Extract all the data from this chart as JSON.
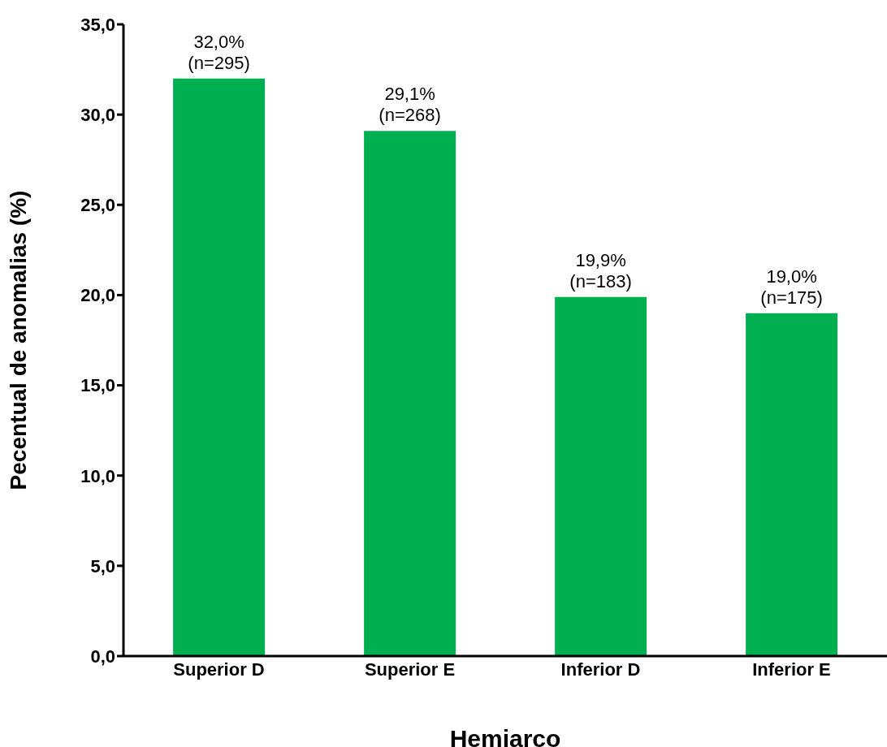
{
  "chart_data": {
    "type": "bar",
    "xlabel": "Hemiarco",
    "ylabel": "Pecentual de anomalias (%)",
    "categories": [
      "Superior D",
      "Superior E",
      "Inferior D",
      "Inferior E"
    ],
    "values": [
      32.0,
      29.1,
      19.9,
      19.0
    ],
    "value_labels": [
      "32,0%\n(n=295)",
      "29,1%\n(n=268)",
      "19,9%\n(n=183)",
      "19,0%\n(n=175)"
    ],
    "color": "#00b050",
    "ylim": [
      0,
      35
    ],
    "yticks": [
      {
        "value": 0,
        "label": "0,0"
      },
      {
        "value": 5,
        "label": "5,0"
      },
      {
        "value": 10,
        "label": "10,0"
      },
      {
        "value": 15,
        "label": "15,0"
      },
      {
        "value": 20,
        "label": "20,0"
      },
      {
        "value": 25,
        "label": "25,0"
      },
      {
        "value": 30,
        "label": "30,0"
      },
      {
        "value": 35,
        "label": "35,0"
      }
    ],
    "grid": false,
    "legend": false
  }
}
